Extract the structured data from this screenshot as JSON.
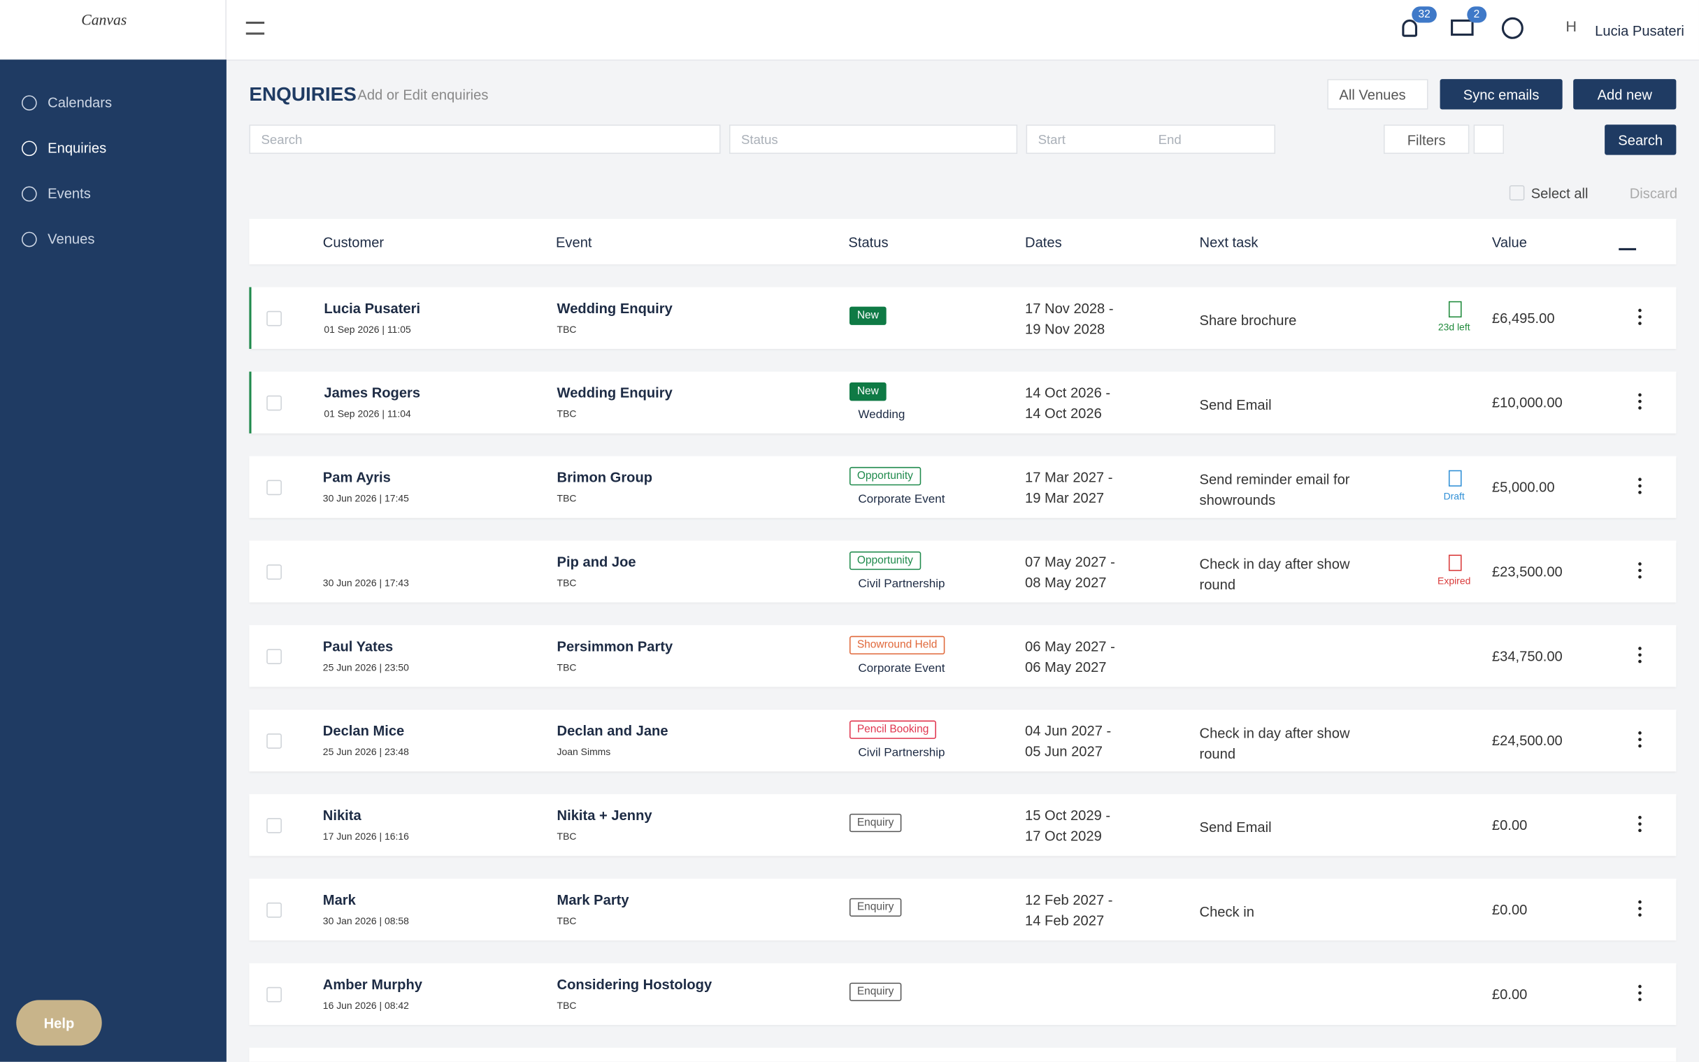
{
  "header": {
    "logo": "Canvas",
    "notifications": "32",
    "messages": "2",
    "avatar": "H",
    "user": "Lucia Pusateri"
  },
  "sidebar": {
    "items": [
      "Calendars",
      "Enquiries",
      "Events",
      "Venues"
    ],
    "active": 1
  },
  "page": {
    "title": "ENQUIRIES",
    "subtitle": "Add or Edit enquiries",
    "venue_select": "All Venues",
    "sync": "Sync emails",
    "add": "Add new"
  },
  "filters": {
    "search": "Search",
    "status": "Status",
    "start": "Start",
    "end": "End",
    "filters": "Filters",
    "search_button": "Search",
    "select_all": "Select all",
    "discard": "Discard"
  },
  "table": {
    "columns": [
      "Customer",
      "Event",
      "Status",
      "Dates",
      "Next task",
      "Value"
    ],
    "rows": [
      {
        "customer": "Lucia Pusateri",
        "created": "01 Sep 2026 | 11:05",
        "event": "Wedding Enquiry",
        "contact": "TBC",
        "status": "New",
        "status_color": "#0f7a45",
        "status_solid": true,
        "dates": [
          "17 Nov 2028 -",
          "19 Nov 2028"
        ],
        "task": "Share brochure",
        "doc": "23d left",
        "doc_color": "#1f8a3b",
        "value": "£6,495.00",
        "highlight": true
      },
      {
        "customer": "James Rogers",
        "created": "01 Sep 2026 | 11:04",
        "event": "Wedding Enquiry",
        "contact": "TBC",
        "status": "New",
        "status_color": "#0f7a45",
        "status_solid": true,
        "type": "Wedding",
        "dates": [
          "14 Oct 2026 -",
          "14 Oct 2026"
        ],
        "task": "Send Email",
        "value": "£10,000.00",
        "highlight": true
      },
      {
        "customer": "Pam Ayris",
        "created": "30 Jun 2026 | 17:45",
        "event": "Brimon Group",
        "contact": "TBC",
        "status": "Opportunity",
        "status_color": "#1f8a4c",
        "type": "Corporate Event",
        "dates": [
          "17 Mar 2027 -",
          "19 Mar 2027"
        ],
        "task": "Send reminder email for showrounds",
        "doc": "Draft",
        "doc_color": "#2f8fd6",
        "value": "£5,000.00"
      },
      {
        "created": "30 Jun 2026 | 17:43",
        "event": "Pip and Joe",
        "contact": "TBC",
        "status": "Opportunity",
        "status_color": "#1f8a4c",
        "type": "Civil Partnership",
        "dates": [
          "07 May 2027 -",
          "08 May 2027"
        ],
        "task": "Check in day after show round",
        "doc": "Expired",
        "doc_color": "#d93a3a",
        "value": "£23,500.00"
      },
      {
        "customer": "Paul Yates",
        "created": "25 Jun 2026 | 23:50",
        "event": "Persimmon Party",
        "contact": "TBC",
        "status": "Showround Held",
        "status_color": "#e0683a",
        "type": "Corporate Event",
        "dates": [
          "06 May 2027 -",
          "06 May 2027"
        ],
        "value": "£34,750.00"
      },
      {
        "customer": "Declan Mice",
        "created": "25 Jun 2026 | 23:48",
        "event": "Declan and Jane",
        "contact": "Joan Simms",
        "status": "Pencil Booking",
        "status_color": "#e0344e",
        "type": "Civil Partnership",
        "dates": [
          "04 Jun 2027 -",
          "05 Jun 2027"
        ],
        "task": "Check in day after show round",
        "value": "£24,500.00"
      },
      {
        "customer": "Nikita",
        "created": "17 Jun 2026 | 16:16",
        "event": "Nikita + Jenny",
        "contact": "TBC",
        "status": "Enquiry",
        "status_color": "#555555",
        "dates": [
          "15 Oct 2029 -",
          "17 Oct 2029"
        ],
        "task": "Send Email",
        "value": "£0.00"
      },
      {
        "customer": "Mark",
        "created": "30 Jan 2026 | 08:58",
        "event": "Mark Party",
        "contact": "TBC",
        "status": "Enquiry",
        "status_color": "#555555",
        "dates": [
          "12 Feb 2027 -",
          "14 Feb 2027"
        ],
        "task": "Check in",
        "value": "£0.00"
      },
      {
        "customer": "Amber Murphy",
        "created": "16 Jun 2026 | 08:42",
        "event": "Considering Hostology",
        "contact": "TBC",
        "status": "Enquiry",
        "status_color": "#555555",
        "value": "£0.00"
      }
    ]
  },
  "help": "Help"
}
